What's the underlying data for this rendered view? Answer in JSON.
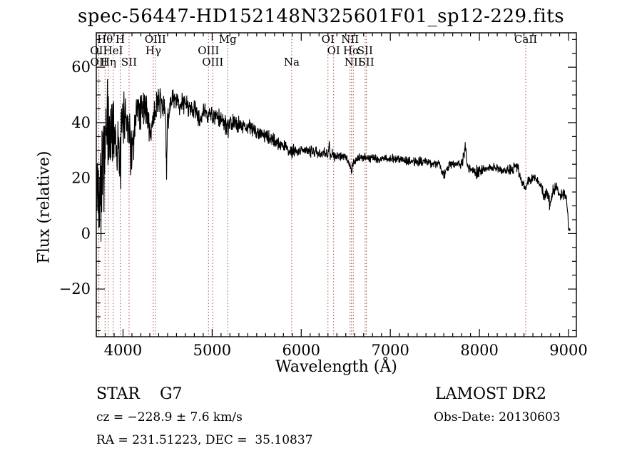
{
  "title": "spec-56447-HD152148N325601F01_sp12-229.fits",
  "footer": {
    "class_label": "STAR    G7",
    "survey": "LAMOST DR2",
    "cz": "cz = −228.9 ± 7.6 km/s",
    "obs_date": "Obs-Date: 20130603",
    "ra_dec": "RA = 231.51223, DEC =  35.10837"
  },
  "chart_data": {
    "type": "line",
    "title": "spec-56447-HD152148N325601F01_sp12-229.fits",
    "xlabel": "Wavelength (Å)",
    "ylabel": "Flux (relative)",
    "xlim": [
      3700,
      9088
    ],
    "ylim": [
      -37.2,
      72.4
    ],
    "xticks": [
      4000,
      5000,
      6000,
      7000,
      8000,
      9000
    ],
    "yticks": [
      -20,
      0,
      20,
      40,
      60
    ],
    "x_minor_step": 100,
    "y_minor_step": 5,
    "grid": false,
    "trace_color": "#000000",
    "line_marker_color": "#a04a42",
    "spectral_lines": [
      {
        "wavelength": 3798,
        "label": "Hθ",
        "row": 1
      },
      {
        "wavelength": 3968,
        "label": "H",
        "row": 1
      },
      {
        "wavelength": 4363,
        "label": "OIII",
        "row": 1
      },
      {
        "wavelength": 5175,
        "label": "Mg",
        "row": 1
      },
      {
        "wavelength": 6300,
        "label": "OI",
        "row": 1
      },
      {
        "wavelength": 6548,
        "label": "NII",
        "row": 1
      },
      {
        "wavelength": 8520,
        "label": "CaII",
        "row": 1
      },
      {
        "wavelength": 3727,
        "label": "OII",
        "row": 2
      },
      {
        "wavelength": 3889,
        "label": "HeI",
        "row": 2
      },
      {
        "wavelength": 4340,
        "label": "Hγ",
        "row": 2
      },
      {
        "wavelength": 4959,
        "label": "OIII",
        "row": 2
      },
      {
        "wavelength": 6364,
        "label": "OI",
        "row": 2
      },
      {
        "wavelength": 6563,
        "label": "Hα",
        "row": 2
      },
      {
        "wavelength": 6717,
        "label": "SII",
        "row": 2
      },
      {
        "wavelength": 3729,
        "label": "OII",
        "row": 3
      },
      {
        "wavelength": 3835,
        "label": "Hη",
        "row": 3
      },
      {
        "wavelength": 4068,
        "label": "SII",
        "row": 3
      },
      {
        "wavelength": 5007,
        "label": "OIII",
        "row": 3
      },
      {
        "wavelength": 5893,
        "label": "Na",
        "row": 3
      },
      {
        "wavelength": 6584,
        "label": "NII",
        "row": 3
      },
      {
        "wavelength": 6731,
        "label": "SII",
        "row": 3
      }
    ],
    "envelope_points": [
      [
        3700,
        10,
        18
      ],
      [
        3710,
        17,
        26
      ],
      [
        3725,
        15,
        27
      ],
      [
        3740,
        22,
        26
      ],
      [
        3760,
        20,
        26
      ],
      [
        3780,
        30,
        24
      ],
      [
        3795,
        26,
        23
      ],
      [
        3810,
        36,
        21
      ],
      [
        3825,
        38,
        20
      ],
      [
        3845,
        34,
        20
      ],
      [
        3865,
        36,
        18
      ],
      [
        3885,
        40,
        17
      ],
      [
        3905,
        37,
        16
      ],
      [
        3930,
        33,
        15
      ],
      [
        3950,
        30,
        15
      ],
      [
        3965,
        20,
        18
      ],
      [
        3980,
        34,
        14
      ],
      [
        4000,
        42,
        11
      ],
      [
        4030,
        43,
        10
      ],
      [
        4060,
        41,
        10
      ],
      [
        4085,
        31,
        12
      ],
      [
        4120,
        29,
        13
      ],
      [
        4150,
        44,
        9
      ],
      [
        4190,
        45,
        9
      ],
      [
        4230,
        46,
        8
      ],
      [
        4265,
        45,
        7
      ],
      [
        4295,
        38,
        8
      ],
      [
        4315,
        36,
        8
      ],
      [
        4335,
        42,
        7
      ],
      [
        4365,
        44,
        7
      ],
      [
        4390,
        48,
        9
      ],
      [
        4420,
        46,
        6
      ],
      [
        4460,
        46,
        6
      ],
      [
        4480,
        40,
        8
      ],
      [
        4488,
        17,
        14
      ],
      [
        4497,
        40,
        7
      ],
      [
        4530,
        47,
        5
      ],
      [
        4580,
        48,
        5
      ],
      [
        4630,
        47,
        5
      ],
      [
        4680,
        47,
        5
      ],
      [
        4730,
        46,
        4.5
      ],
      [
        4780,
        45,
        4.5
      ],
      [
        4825,
        44,
        4
      ],
      [
        4861,
        40,
        4
      ],
      [
        4900,
        44,
        4
      ],
      [
        4950,
        43,
        4
      ],
      [
        5000,
        42.5,
        4
      ],
      [
        5060,
        41.5,
        4
      ],
      [
        5120,
        41,
        4
      ],
      [
        5175,
        37.5,
        4.5
      ],
      [
        5225,
        40,
        3.5
      ],
      [
        5300,
        39.5,
        3.5
      ],
      [
        5400,
        38.5,
        3.5
      ],
      [
        5500,
        37,
        3
      ],
      [
        5600,
        35,
        3
      ],
      [
        5700,
        33.5,
        3
      ],
      [
        5800,
        31.5,
        3
      ],
      [
        5893,
        29.5,
        3
      ],
      [
        5960,
        30,
        2.5
      ],
      [
        6050,
        30,
        2.5
      ],
      [
        6150,
        29.5,
        2.5
      ],
      [
        6250,
        29,
        2.5
      ],
      [
        6300,
        28.5,
        2.5
      ],
      [
        6310,
        33,
        3
      ],
      [
        6325,
        28.5,
        2.5
      ],
      [
        6400,
        28,
        2
      ],
      [
        6500,
        27.5,
        2
      ],
      [
        6540,
        26,
        2
      ],
      [
        6563,
        22.5,
        2
      ],
      [
        6590,
        26,
        2
      ],
      [
        6650,
        27,
        2
      ],
      [
        6750,
        27.5,
        2
      ],
      [
        6850,
        27,
        2
      ],
      [
        6950,
        27,
        2
      ],
      [
        7050,
        27,
        2
      ],
      [
        7150,
        26.5,
        2
      ],
      [
        7250,
        26,
        2
      ],
      [
        7350,
        26,
        2
      ],
      [
        7450,
        25.5,
        2
      ],
      [
        7550,
        25,
        2
      ],
      [
        7600,
        20.5,
        2.5
      ],
      [
        7640,
        24,
        2
      ],
      [
        7700,
        25,
        2
      ],
      [
        7800,
        25,
        2.5
      ],
      [
        7845,
        31,
        4
      ],
      [
        7858,
        25,
        2.5
      ],
      [
        7900,
        23.5,
        2.5
      ],
      [
        7950,
        22,
        3
      ],
      [
        8000,
        22.5,
        3
      ],
      [
        8050,
        23,
        2.5
      ],
      [
        8120,
        24,
        2
      ],
      [
        8200,
        23.5,
        2
      ],
      [
        8280,
        22.5,
        2
      ],
      [
        8360,
        23,
        2.5
      ],
      [
        8430,
        24.5,
        2.5
      ],
      [
        8460,
        19.5,
        2
      ],
      [
        8515,
        16.5,
        2
      ],
      [
        8545,
        19,
        2
      ],
      [
        8600,
        20,
        2
      ],
      [
        8660,
        19,
        2
      ],
      [
        8700,
        16,
        3
      ],
      [
        8730,
        12.5,
        3
      ],
      [
        8760,
        15,
        3
      ],
      [
        8790,
        10.5,
        3
      ],
      [
        8820,
        14.5,
        3
      ],
      [
        8860,
        16.5,
        2.5
      ],
      [
        8900,
        14,
        3
      ],
      [
        8940,
        14.5,
        3
      ],
      [
        8975,
        13.5,
        2.5
      ],
      [
        8990,
        8,
        2
      ],
      [
        9000,
        2,
        1
      ],
      [
        9020,
        1.5,
        0.8
      ]
    ],
    "envelope_note": "columns: wavelength(A), mean flux, noise half-amplitude"
  }
}
